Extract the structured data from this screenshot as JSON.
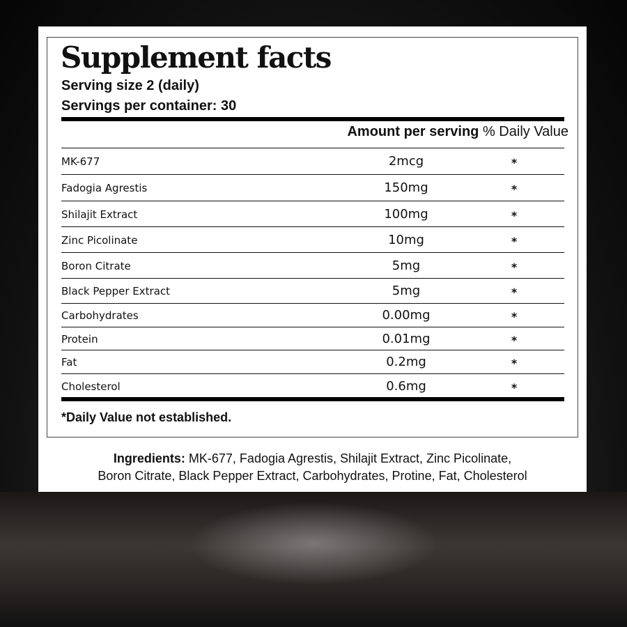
{
  "label": {
    "title": "Supplement facts",
    "serving_size": "Serving size 2 (daily)",
    "servings_per_container": "Servings per container: 30",
    "header_amount": "Amount per serving",
    "header_dv": "% Daily Value",
    "rows": [
      {
        "name": "MK-677",
        "amount": "2mcg",
        "dv": "*"
      },
      {
        "name": "Fadogia Agrestis",
        "amount": "150mg",
        "dv": "*"
      },
      {
        "name": "Shilajit Extract",
        "amount": "100mg",
        "dv": "*"
      },
      {
        "name": "Zinc Picolinate",
        "amount": "10mg",
        "dv": "*"
      },
      {
        "name": "Boron Citrate",
        "amount": "5mg",
        "dv": "*"
      },
      {
        "name": "Black Pepper Extract",
        "amount": "5mg",
        "dv": "*"
      },
      {
        "name": "Carbohydrates",
        "amount": "0.00mg",
        "dv": "*"
      },
      {
        "name": "Protein",
        "amount": "0.01mg",
        "dv": "*"
      },
      {
        "name": "Fat",
        "amount": "0.2mg",
        "dv": "*"
      },
      {
        "name": "Cholesterol",
        "amount": "0.6mg",
        "dv": "*"
      }
    ],
    "footnote": "*Daily Value not established.",
    "ingredients_label": "Ingredients:",
    "ingredients_line1": " MK-677, Fadogia Agrestis, Shilajit Extract, Zinc Picolinate,",
    "ingredients_line2": "Boron Citrate, Black Pepper Extract, Carbohydrates, Protine, Fat, Cholesterol"
  }
}
